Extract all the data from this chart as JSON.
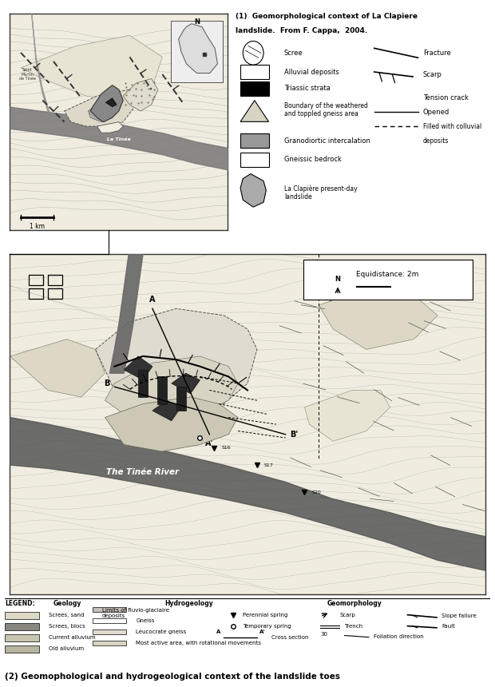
{
  "title1_line1": "(1) Geomorphological context of La Clapiere",
  "title1_line2": "landslide. From F. Cappa, 2004.",
  "title2": "(2) Geomophological and hydrogeological context of the landslide toes",
  "bg_color": "#ffffff",
  "contour_color": "#aaaaaa",
  "river_dark": "#555555",
  "river_light": "#999999",
  "map1_bg": "#f0ece0",
  "map2_bg": "#f2eeE2"
}
